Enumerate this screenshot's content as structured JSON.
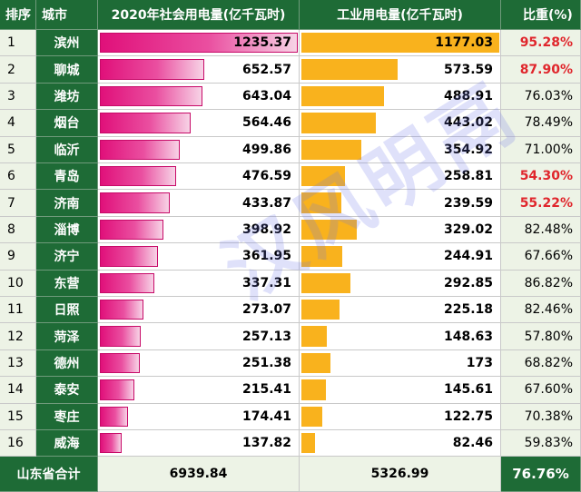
{
  "chart_data": {
    "type": "table",
    "headers": [
      "排序",
      "城市",
      "2020年社会用电量(亿千瓦时)",
      "工业用电量(亿千瓦时)",
      "比重(%)"
    ],
    "rows": [
      {
        "rank": "1",
        "city": "滨州",
        "social": 1235.37,
        "social_text": "1235.37",
        "industrial": 1177.03,
        "industrial_text": "1177.03",
        "ratio": "95.28%",
        "highlight": true
      },
      {
        "rank": "2",
        "city": "聊城",
        "social": 652.57,
        "social_text": "652.57",
        "industrial": 573.59,
        "industrial_text": "573.59",
        "ratio": "87.90%",
        "highlight": true
      },
      {
        "rank": "3",
        "city": "潍坊",
        "social": 643.04,
        "social_text": "643.04",
        "industrial": 488.91,
        "industrial_text": "488.91",
        "ratio": "76.03%",
        "highlight": false
      },
      {
        "rank": "4",
        "city": "烟台",
        "social": 564.46,
        "social_text": "564.46",
        "industrial": 443.02,
        "industrial_text": "443.02",
        "ratio": "78.49%",
        "highlight": false
      },
      {
        "rank": "5",
        "city": "临沂",
        "social": 499.86,
        "social_text": "499.86",
        "industrial": 354.92,
        "industrial_text": "354.92",
        "ratio": "71.00%",
        "highlight": false
      },
      {
        "rank": "6",
        "city": "青岛",
        "social": 476.59,
        "social_text": "476.59",
        "industrial": 258.81,
        "industrial_text": "258.81",
        "ratio": "54.30%",
        "highlight": true
      },
      {
        "rank": "7",
        "city": "济南",
        "social": 433.87,
        "social_text": "433.87",
        "industrial": 239.59,
        "industrial_text": "239.59",
        "ratio": "55.22%",
        "highlight": true
      },
      {
        "rank": "8",
        "city": "淄博",
        "social": 398.92,
        "social_text": "398.92",
        "industrial": 329.02,
        "industrial_text": "329.02",
        "ratio": "82.48%",
        "highlight": false
      },
      {
        "rank": "9",
        "city": "济宁",
        "social": 361.95,
        "social_text": "361.95",
        "industrial": 244.91,
        "industrial_text": "244.91",
        "ratio": "67.66%",
        "highlight": false
      },
      {
        "rank": "10",
        "city": "东营",
        "social": 337.31,
        "social_text": "337.31",
        "industrial": 292.85,
        "industrial_text": "292.85",
        "ratio": "86.82%",
        "highlight": false
      },
      {
        "rank": "11",
        "city": "日照",
        "social": 273.07,
        "social_text": "273.07",
        "industrial": 225.18,
        "industrial_text": "225.18",
        "ratio": "82.46%",
        "highlight": false
      },
      {
        "rank": "12",
        "city": "菏泽",
        "social": 257.13,
        "social_text": "257.13",
        "industrial": 148.63,
        "industrial_text": "148.63",
        "ratio": "57.80%",
        "highlight": false
      },
      {
        "rank": "13",
        "city": "德州",
        "social": 251.38,
        "social_text": "251.38",
        "industrial": 173,
        "industrial_text": "173",
        "ratio": "68.82%",
        "highlight": false
      },
      {
        "rank": "14",
        "city": "泰安",
        "social": 215.41,
        "social_text": "215.41",
        "industrial": 145.61,
        "industrial_text": "145.61",
        "ratio": "67.60%",
        "highlight": false
      },
      {
        "rank": "15",
        "city": "枣庄",
        "social": 174.41,
        "social_text": "174.41",
        "industrial": 122.75,
        "industrial_text": "122.75",
        "ratio": "70.38%",
        "highlight": false
      },
      {
        "rank": "16",
        "city": "威海",
        "social": 137.82,
        "social_text": "137.82",
        "industrial": 82.46,
        "industrial_text": "82.46",
        "ratio": "59.83%",
        "highlight": false
      }
    ],
    "total": {
      "label": "山东省合计",
      "social": "6939.84",
      "industrial": "5326.99",
      "ratio": "76.76%"
    },
    "social_bar_max": 1235.37,
    "industrial_bar_max": 1177.03,
    "colors": {
      "header": "#1e6b36",
      "social_bar": "#e0107a",
      "industrial_bar": "#f9b21d",
      "highlight_text": "#e0262c",
      "light_cell": "#edf3e6"
    }
  },
  "watermark": "汉风明鬲"
}
